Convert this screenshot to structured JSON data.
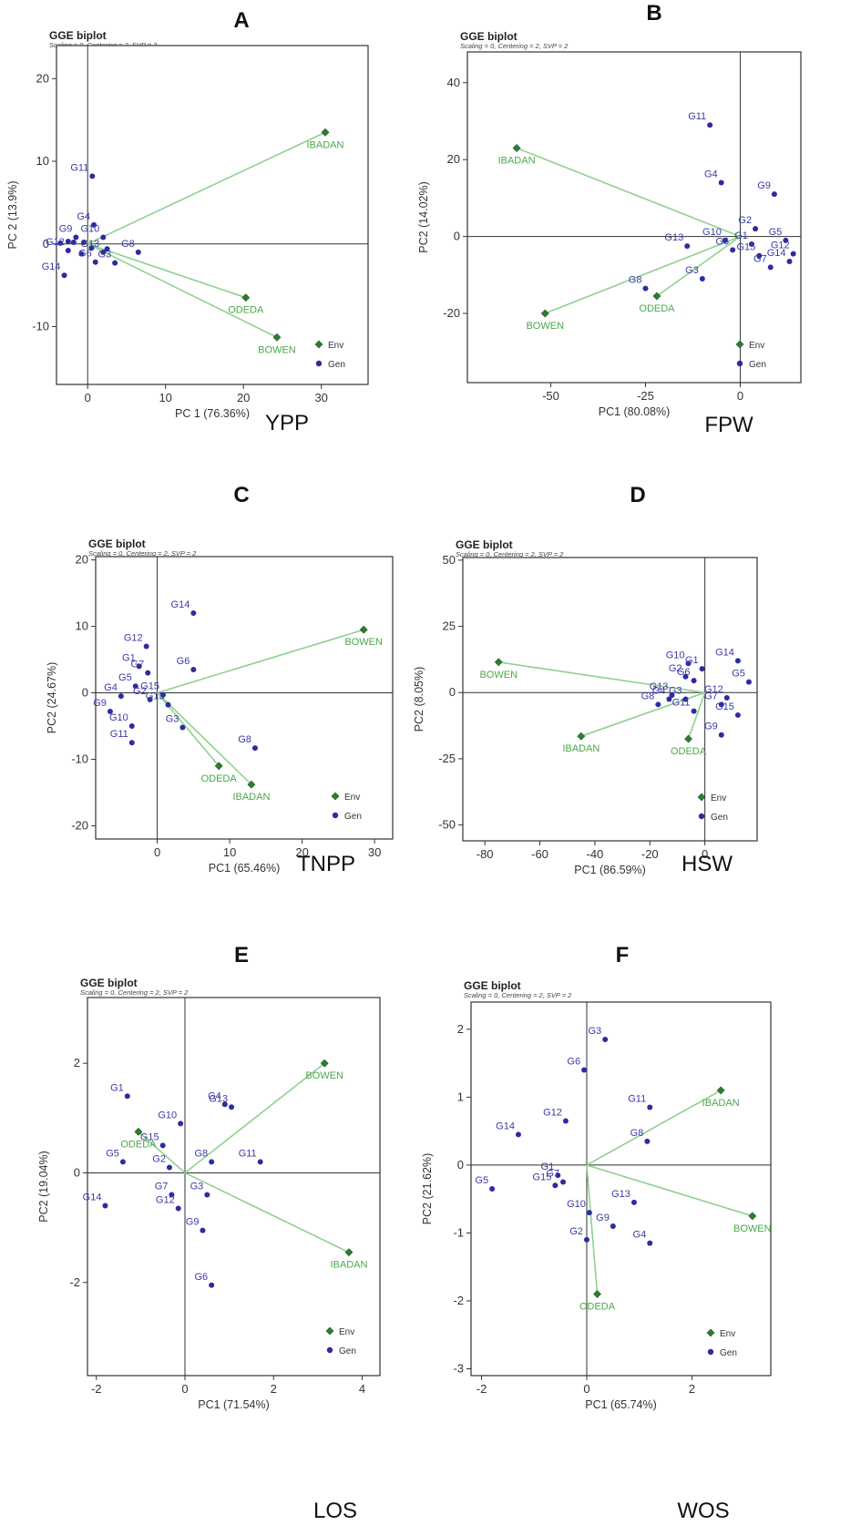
{
  "chart_data": [
    {
      "type": "scatter",
      "panel": "A",
      "title": "GGE biplot",
      "subtitle": "Scaling = 0, Centering = 2, SVP = 2",
      "xlabel": "PC 1 (76.36%)",
      "ylabel": "PC 2 (13.9%)",
      "trait": "YPP",
      "xlim": [
        -4,
        36
      ],
      "ylim": [
        -17,
        24
      ],
      "xticks": [
        0,
        10,
        20,
        30
      ],
      "yticks": [
        -10,
        0,
        10,
        20
      ],
      "legend": {
        "env": "Env",
        "gen": "Gen"
      },
      "environments": [
        {
          "name": "IBADAN",
          "x": 30.5,
          "y": 13.5
        },
        {
          "name": "ODEDA",
          "x": 20.3,
          "y": -6.5
        },
        {
          "name": "BOWEN",
          "x": 24.3,
          "y": -11.3
        }
      ],
      "genotypes": [
        {
          "name": "G11",
          "x": 0.6,
          "y": 8.2
        },
        {
          "name": "G4",
          "x": 0.8,
          "y": 2.3
        },
        {
          "name": "G9",
          "x": -1.5,
          "y": 0.8
        },
        {
          "name": "G10",
          "x": 2.0,
          "y": 0.8
        },
        {
          "name": "G8",
          "x": 6.5,
          "y": -1.0
        },
        {
          "name": "G13",
          "x": 2.0,
          "y": -1.0
        },
        {
          "name": "G12",
          "x": -2.5,
          "y": -0.8
        },
        {
          "name": "G6",
          "x": 1.0,
          "y": -2.2
        },
        {
          "name": "G3",
          "x": 3.5,
          "y": -2.3
        },
        {
          "name": "G14",
          "x": -3.0,
          "y": -3.8
        }
      ],
      "unlabeled_genotypes": [
        {
          "x": -3.5,
          "y": 0.1
        },
        {
          "x": -2.5,
          "y": 0.3
        },
        {
          "x": -1.8,
          "y": 0.2
        },
        {
          "x": -0.5,
          "y": 0.2
        },
        {
          "x": -0.8,
          "y": -1.2
        },
        {
          "x": 0.5,
          "y": -0.5
        },
        {
          "x": 2.5,
          "y": -0.6
        }
      ]
    },
    {
      "type": "scatter",
      "panel": "B",
      "title": "GGE biplot",
      "subtitle": "Scaling = 0, Centering = 2, SVP = 2",
      "xlabel": "PC1 (80.08%)",
      "ylabel": "PC2 (14.02%)",
      "trait": "FPW",
      "xlim": [
        -72,
        16
      ],
      "ylim": [
        -38,
        48
      ],
      "xticks": [
        -50,
        -25,
        0
      ],
      "yticks": [
        -20,
        0,
        20,
        40
      ],
      "legend": {
        "env": "Env",
        "gen": "Gen"
      },
      "environments": [
        {
          "name": "IBADAN",
          "x": -59.0,
          "y": 23.0
        },
        {
          "name": "BOWEN",
          "x": -51.5,
          "y": -20.0
        },
        {
          "name": "ODEDA",
          "x": -22.0,
          "y": -15.5
        }
      ],
      "genotypes": [
        {
          "name": "G11",
          "x": -8.0,
          "y": 29.0
        },
        {
          "name": "G4",
          "x": -5.0,
          "y": 14.0
        },
        {
          "name": "G9",
          "x": 9.0,
          "y": 11.0
        },
        {
          "name": "G10",
          "x": -4.0,
          "y": -1.0
        },
        {
          "name": "G2",
          "x": 4.0,
          "y": 2.0
        },
        {
          "name": "G1",
          "x": 3.0,
          "y": -2.0
        },
        {
          "name": "G5",
          "x": 12.0,
          "y": -1.0
        },
        {
          "name": "G13",
          "x": -14.0,
          "y": -2.5
        },
        {
          "name": "G6",
          "x": -2.0,
          "y": -3.5
        },
        {
          "name": "G12",
          "x": 14.0,
          "y": -4.5
        },
        {
          "name": "G15",
          "x": 5.0,
          "y": -5.0
        },
        {
          "name": "G14",
          "x": 13.0,
          "y": -6.5
        },
        {
          "name": "G7",
          "x": 8.0,
          "y": -8.0
        },
        {
          "name": "G8",
          "x": -25.0,
          "y": -13.5
        },
        {
          "name": "G3",
          "x": -10.0,
          "y": -11.0
        }
      ],
      "unlabeled_genotypes": []
    },
    {
      "type": "scatter",
      "panel": "C",
      "title": "GGE biplot",
      "subtitle": "Scaling = 0, Centering = 2, SVP = 2",
      "xlabel": "PC1 (65.46%)",
      "ylabel": "PC2 (24.67%)",
      "trait": "TNPP",
      "xlim": [
        -8.5,
        32.5
      ],
      "ylim": [
        -22,
        20.5
      ],
      "xticks": [
        0,
        10,
        20,
        30
      ],
      "yticks": [
        -20,
        -10,
        0,
        10,
        20
      ],
      "legend": {
        "env": "Env",
        "gen": "Gen"
      },
      "environments": [
        {
          "name": "BOWEN",
          "x": 28.5,
          "y": 9.5
        },
        {
          "name": "ODEDA",
          "x": 8.5,
          "y": -11.0
        },
        {
          "name": "IBADAN",
          "x": 13.0,
          "y": -13.8
        }
      ],
      "genotypes": [
        {
          "name": "G14",
          "x": 5.0,
          "y": 12.0
        },
        {
          "name": "G12",
          "x": -1.5,
          "y": 7.0
        },
        {
          "name": "G1",
          "x": -2.5,
          "y": 4.0
        },
        {
          "name": "G7",
          "x": -1.3,
          "y": 3.0
        },
        {
          "name": "G6",
          "x": 5.0,
          "y": 3.5
        },
        {
          "name": "G5",
          "x": -3.0,
          "y": 1.0
        },
        {
          "name": "G15",
          "x": 0.8,
          "y": -0.3
        },
        {
          "name": "G4",
          "x": -5.0,
          "y": -0.5
        },
        {
          "name": "G2",
          "x": -1.0,
          "y": -1.0
        },
        {
          "name": "G13",
          "x": 1.5,
          "y": -1.8
        },
        {
          "name": "G9",
          "x": -6.5,
          "y": -2.8
        },
        {
          "name": "G3",
          "x": 3.5,
          "y": -5.2
        },
        {
          "name": "G10",
          "x": -3.5,
          "y": -5.0
        },
        {
          "name": "G11",
          "x": -3.5,
          "y": -7.5
        },
        {
          "name": "G8",
          "x": 13.5,
          "y": -8.3
        }
      ],
      "unlabeled_genotypes": []
    },
    {
      "type": "scatter",
      "panel": "D",
      "title": "GGE biplot",
      "subtitle": "Scaling = 0, Centering = 2, SVP = 2",
      "xlabel": "PC1 (86.59%)",
      "ylabel": "PC2 (8.05%)",
      "trait": "HSW",
      "xlim": [
        -88,
        19
      ],
      "ylim": [
        -56,
        51
      ],
      "xticks": [
        -80,
        -60,
        -40,
        -20,
        0
      ],
      "yticks": [
        -50,
        -25,
        0,
        25,
        50
      ],
      "legend": {
        "env": "Env",
        "gen": "Gen"
      },
      "environments": [
        {
          "name": "BOWEN",
          "x": -75.0,
          "y": 11.5
        },
        {
          "name": "IBADAN",
          "x": -45.0,
          "y": -16.5
        },
        {
          "name": "ODEDA",
          "x": -6.0,
          "y": -17.5
        }
      ],
      "genotypes": [
        {
          "name": "G14",
          "x": 12.0,
          "y": 12.0
        },
        {
          "name": "G10",
          "x": -6.0,
          "y": 11.0
        },
        {
          "name": "G1",
          "x": -1.0,
          "y": 9.0
        },
        {
          "name": "G2",
          "x": -7.0,
          "y": 6.0
        },
        {
          "name": "G5",
          "x": 16.0,
          "y": 4.0
        },
        {
          "name": "G6",
          "x": -4.0,
          "y": 4.5
        },
        {
          "name": "G13",
          "x": -12.0,
          "y": -1.0
        },
        {
          "name": "G12",
          "x": 8.0,
          "y": -2.0
        },
        {
          "name": "G3",
          "x": -7.0,
          "y": -2.5
        },
        {
          "name": "G4",
          "x": -13.0,
          "y": -2.5
        },
        {
          "name": "G8",
          "x": -17.0,
          "y": -4.5
        },
        {
          "name": "G7",
          "x": 6.0,
          "y": -4.5
        },
        {
          "name": "G11",
          "x": -4.0,
          "y": -7.0
        },
        {
          "name": "G15",
          "x": 12.0,
          "y": -8.5
        },
        {
          "name": "G9",
          "x": 6.0,
          "y": -16.0
        }
      ],
      "unlabeled_genotypes": []
    },
    {
      "type": "scatter",
      "panel": "E",
      "title": "GGE biplot",
      "subtitle": "Scaling = 0, Centering = 2, SVP = 2",
      "xlabel": "PC1 (71.54%)",
      "ylabel": "PC2 (19.04%)",
      "trait": "LOS",
      "xlim": [
        -2.2,
        4.4
      ],
      "ylim": [
        -3.7,
        3.2
      ],
      "xticks": [
        -2,
        0,
        2,
        4
      ],
      "yticks": [
        -2,
        0,
        2
      ],
      "legend": {
        "env": "Env",
        "gen": "Gen"
      },
      "environments": [
        {
          "name": "BOWEN",
          "x": 3.15,
          "y": 2.0
        },
        {
          "name": "ODEDA",
          "x": -1.05,
          "y": 0.75
        },
        {
          "name": "IBADAN",
          "x": 3.7,
          "y": -1.45
        }
      ],
      "genotypes": [
        {
          "name": "G1",
          "x": -1.3,
          "y": 1.4
        },
        {
          "name": "G4",
          "x": 0.9,
          "y": 1.25
        },
        {
          "name": "G13",
          "x": 1.05,
          "y": 1.2
        },
        {
          "name": "G10",
          "x": -0.1,
          "y": 0.9
        },
        {
          "name": "G15",
          "x": -0.5,
          "y": 0.5
        },
        {
          "name": "G5",
          "x": -1.4,
          "y": 0.2
        },
        {
          "name": "G8",
          "x": 0.6,
          "y": 0.2
        },
        {
          "name": "G11",
          "x": 1.7,
          "y": 0.2
        },
        {
          "name": "G2",
          "x": -0.35,
          "y": 0.1
        },
        {
          "name": "G7",
          "x": -0.3,
          "y": -0.4
        },
        {
          "name": "G3",
          "x": 0.5,
          "y": -0.4
        },
        {
          "name": "G14",
          "x": -1.8,
          "y": -0.6
        },
        {
          "name": "G12",
          "x": -0.15,
          "y": -0.65
        },
        {
          "name": "G9",
          "x": 0.4,
          "y": -1.05
        },
        {
          "name": "G6",
          "x": 0.6,
          "y": -2.05
        }
      ],
      "unlabeled_genotypes": []
    },
    {
      "type": "scatter",
      "panel": "F",
      "title": "GGE biplot",
      "subtitle": "Scaling = 0, Centering = 2, SVP = 2",
      "xlabel": "PC1 (65.74%)",
      "ylabel": "PC2 (21.62%)",
      "trait": "WOS",
      "xlim": [
        -2.2,
        3.5
      ],
      "ylim": [
        -3.1,
        2.4
      ],
      "xticks": [
        -2,
        0,
        2
      ],
      "yticks": [
        -3,
        -2,
        -1,
        0,
        1,
        2
      ],
      "legend": {
        "env": "Env",
        "gen": "Gen"
      },
      "environments": [
        {
          "name": "IBADAN",
          "x": 2.55,
          "y": 1.1
        },
        {
          "name": "BOWEN",
          "x": 3.15,
          "y": -0.75
        },
        {
          "name": "ODEDA",
          "x": 0.2,
          "y": -1.9
        }
      ],
      "genotypes": [
        {
          "name": "G3",
          "x": 0.35,
          "y": 1.85
        },
        {
          "name": "G6",
          "x": -0.05,
          "y": 1.4
        },
        {
          "name": "G11",
          "x": 1.2,
          "y": 0.85
        },
        {
          "name": "G12",
          "x": -0.4,
          "y": 0.65
        },
        {
          "name": "G14",
          "x": -1.3,
          "y": 0.45
        },
        {
          "name": "G8",
          "x": 1.15,
          "y": 0.35
        },
        {
          "name": "G1",
          "x": -0.55,
          "y": -0.15
        },
        {
          "name": "G7",
          "x": -0.45,
          "y": -0.25
        },
        {
          "name": "G15",
          "x": -0.6,
          "y": -0.3
        },
        {
          "name": "G5",
          "x": -1.8,
          "y": -0.35
        },
        {
          "name": "G13",
          "x": 0.9,
          "y": -0.55
        },
        {
          "name": "G10",
          "x": 0.05,
          "y": -0.7
        },
        {
          "name": "G9",
          "x": 0.5,
          "y": -0.9
        },
        {
          "name": "G2",
          "x": 0.0,
          "y": -1.1
        },
        {
          "name": "G4",
          "x": 1.2,
          "y": -1.15
        }
      ],
      "unlabeled_genotypes": []
    }
  ]
}
